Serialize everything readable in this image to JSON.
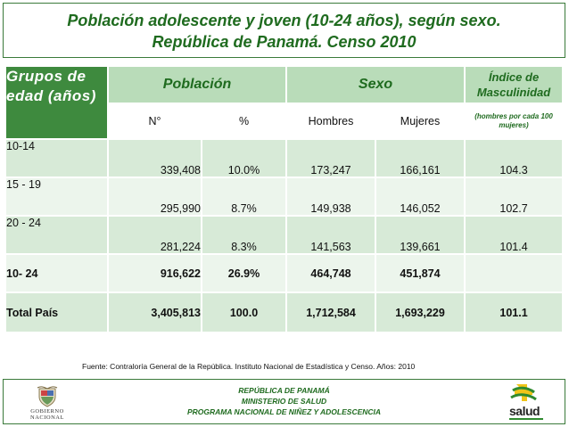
{
  "title": {
    "line1": "Población adolescente y joven (10-24 años), según sexo.",
    "line2": "República de Panamá.   Censo 2010"
  },
  "table": {
    "headers": {
      "grupos": "Grupos  de edad (años)",
      "poblacion": "Población",
      "sexo": "Sexo",
      "indice": "Índice de Masculinidad",
      "n": "N°",
      "pct": "%",
      "hombres": "Hombres",
      "mujeres": "Mujeres",
      "indice_note": "(hombres por cada 100 mujeres)"
    },
    "rows": [
      {
        "grupo": "10-14",
        "n": "339,408",
        "pct": "10.0%",
        "hombres": "173,247",
        "mujeres": "166,161",
        "indice": "104.3"
      },
      {
        "grupo": "15 -  19",
        "n": "295,990",
        "pct": "8.7%",
        "hombres": "149,938",
        "mujeres": "146,052",
        "indice": "102.7"
      },
      {
        "grupo": "20 -  24",
        "n": "281,224",
        "pct": "8.3%",
        "hombres": "141,563",
        "mujeres": "139,661",
        "indice": "101.4"
      },
      {
        "grupo": "10- 24",
        "n": "916,622",
        "pct": "26.9%",
        "hombres": "464,748",
        "mujeres": "451,874",
        "indice": ""
      },
      {
        "grupo": "Total País",
        "n": "3,405,813",
        "pct": "100.0",
        "hombres": "1,712,584",
        "mujeres": "1,693,229",
        "indice": "101.1"
      }
    ]
  },
  "source": "Fuente: Contraloría General de la República.  Instituto Nacional de Estadística y Censo.  Años: 2010",
  "footer": {
    "line1": "REPÚBLICA DE PANAMÁ",
    "line2": "MINISTERIO DE SALUD",
    "line3": "PROGRAMA NACIONAL DE NIÑEZ Y ADOLESCENCIA",
    "logo_left_text": "GOBIERNO NACIONAL",
    "logo_right_text": "salud"
  },
  "colors": {
    "header_dark": "#3e8a3e",
    "header_light": "#b9dcb9",
    "row_dark": "#d7ead7",
    "row_light": "#ecf5ec",
    "title_text": "#1f6b1f"
  }
}
